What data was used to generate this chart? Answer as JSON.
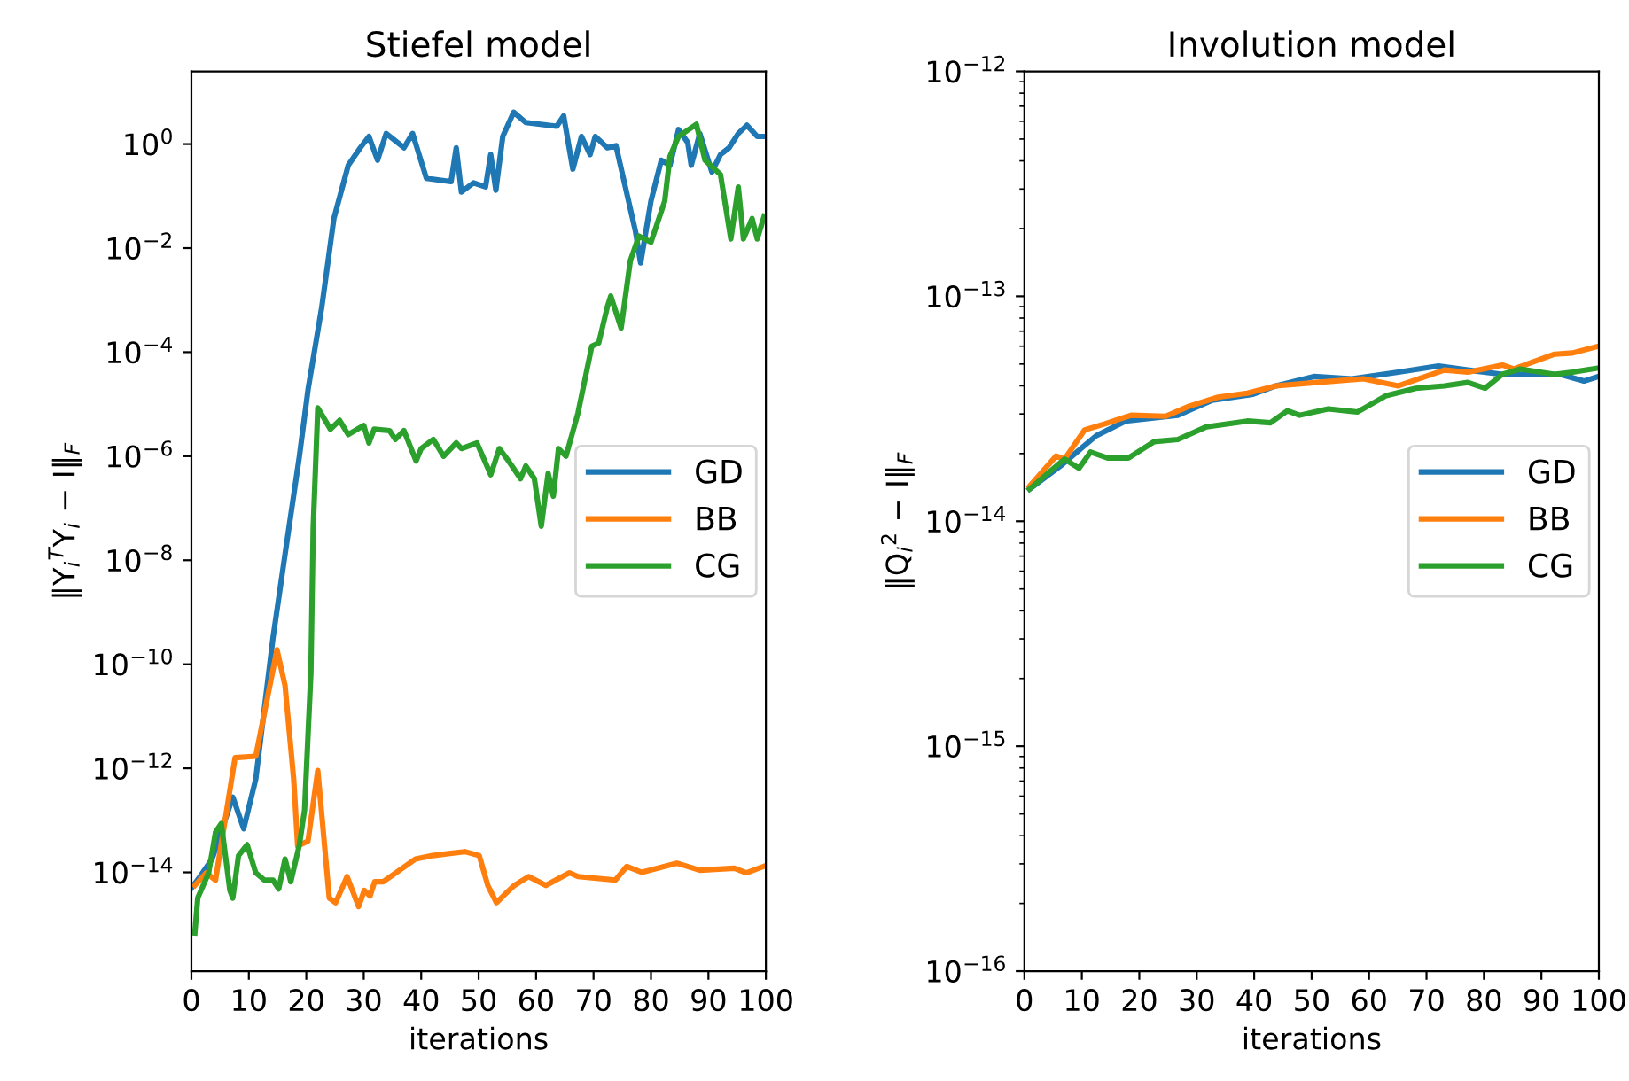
{
  "chart_data": [
    {
      "type": "line",
      "title": "Stiefel model",
      "xlabel": "iterations",
      "ylabel": "‖Y$_{i}$$^{T}$Y$_{i}$ − I‖$_{F}$",
      "log": "y",
      "grid": false,
      "legend": "right",
      "xlim": [
        0,
        100
      ],
      "xticks": [
        0,
        10,
        20,
        30,
        40,
        50,
        60,
        70,
        80,
        90,
        100
      ],
      "ylim": [
        1.26e-16,
        25
      ],
      "yticks": [
        {
          "value": 1e-14,
          "label": "10$^{−14}$"
        },
        {
          "value": 1e-12,
          "label": "10$^{−12}$"
        },
        {
          "value": 1e-10,
          "label": "10$^{−10}$"
        },
        {
          "value": 1e-08,
          "label": "10$^{−8}$"
        },
        {
          "value": 1e-06,
          "label": "10$^{−6}$"
        },
        {
          "value": 0.0001,
          "label": "10$^{−4}$"
        },
        {
          "value": 0.01,
          "label": "10$^{−2}$"
        },
        {
          "value": 1,
          "label": "10$^{0}$"
        }
      ],
      "series": [
        {
          "name": "GD",
          "color": "#1f77b4",
          "x": [
            0,
            1.5,
            3.6,
            7.2,
            9.1,
            11.2,
            14.2,
            16.3,
            18.8,
            20.3,
            22.7,
            24.8,
            27.3,
            29.4,
            30.9,
            32.4,
            33.9,
            37.0,
            38.5,
            40.9,
            45.2,
            46.1,
            47.0,
            49.1,
            51.2,
            52.1,
            53.0,
            54.2,
            56.1,
            58.2,
            63.6,
            64.8,
            66.4,
            67.9,
            69.4,
            70.3,
            72.4,
            73.9,
            77.3,
            78.2,
            80.0,
            81.8,
            83.3,
            84.8,
            86.4,
            87.0,
            88.5,
            90.6,
            92.1,
            93.6,
            95.2,
            96.7,
            98.5,
            100
          ],
          "values": [
            5e-15,
            8.3e-15,
            1.8e-14,
            2.8e-13,
            6.9e-14,
            6.2e-13,
            3.2e-10,
            1.3e-08,
            1e-06,
            1.9e-05,
            0.00074,
            0.037,
            0.39,
            0.85,
            1.4,
            0.49,
            1.6,
            0.85,
            1.6,
            0.22,
            0.19,
            0.85,
            0.12,
            0.18,
            0.15,
            0.63,
            0.13,
            1.4,
            4.1,
            2.6,
            2.2,
            3.5,
            0.33,
            1.4,
            0.63,
            1.4,
            0.85,
            0.93,
            0.021,
            0.0052,
            0.081,
            0.49,
            0.39,
            1.9,
            1.07,
            0.39,
            1.6,
            0.29,
            0.63,
            0.85,
            1.6,
            2.3,
            1.4,
            1.4
          ]
        },
        {
          "name": "BB",
          "color": "#ff7f0e",
          "x": [
            0.6,
            2.6,
            4.2,
            7.6,
            11.2,
            14.9,
            16.3,
            17.8,
            18.5,
            20.3,
            22.0,
            24.0,
            25.1,
            27.1,
            29.1,
            30.1,
            31.1,
            31.9,
            33.4,
            39.0,
            42.0,
            47.6,
            50.1,
            51.6,
            53.1,
            54.6,
            56.2,
            58.7,
            61.7,
            65.8,
            67.3,
            73.8,
            75.8,
            78.4,
            84.5,
            88.5,
            94.5,
            96.6,
            99.6
          ],
          "values": [
            5.6e-15,
            9.8e-15,
            7.1e-15,
            1.6e-12,
            1.7e-12,
            1.9e-10,
            3.9e-11,
            6.2e-13,
            3.2e-14,
            4e-14,
            9.1e-13,
            3.2e-15,
            2.6e-15,
            8.3e-15,
            2.2e-15,
            4.5e-15,
            3.5e-15,
            6.6e-15,
            6.6e-15,
            1.8e-14,
            2.1e-14,
            2.5e-14,
            2.1e-14,
            5.6e-15,
            2.6e-15,
            3.8e-15,
            5.6e-15,
            8.3e-15,
            5.6e-15,
            9.8e-15,
            8.3e-15,
            7.1e-15,
            1.3e-14,
            1e-14,
            1.5e-14,
            1.1e-14,
            1.2e-14,
            9.8e-15,
            1.3e-14
          ]
        },
        {
          "name": "CG",
          "color": "#2ca02c",
          "x": [
            0.6,
            1.1,
            3.0,
            4.2,
            5.2,
            6.7,
            7.2,
            8.2,
            9.7,
            11.2,
            12.7,
            14.2,
            15.2,
            16.3,
            17.3,
            18.8,
            19.7,
            20.8,
            21.2,
            22.0,
            24.2,
            25.8,
            27.3,
            30.0,
            30.9,
            31.8,
            34.5,
            35.5,
            37.0,
            39.1,
            40.0,
            42.1,
            43.9,
            46.1,
            47.0,
            49.7,
            52.1,
            53.6,
            55.2,
            57.3,
            58.2,
            59.7,
            60.9,
            62.1,
            63.0,
            63.9,
            65.2,
            67.3,
            69.7,
            70.9,
            72.4,
            73.0,
            74.8,
            76.4,
            77.9,
            80.0,
            82.4,
            83.3,
            84.8,
            87.9,
            89.4,
            92.1,
            93.9,
            95.2,
            96.1,
            97.6,
            98.5,
            99.7
          ],
          "values": [
            6.8e-16,
            3.2e-15,
            9.8e-15,
            5.9e-14,
            8.7e-14,
            4.5e-15,
            3.2e-15,
            2.1e-14,
            3.4e-14,
            9.8e-15,
            7.1e-15,
            7.1e-15,
            4.8e-15,
            1.8e-14,
            6.6e-15,
            3.4e-14,
            1.6e-13,
            6.8e-11,
            4.2e-08,
            8.5e-06,
            3.3e-06,
            4.9e-06,
            2.6e-06,
            3.9e-06,
            1.8e-06,
            3.3e-06,
            3.1e-06,
            2.1e-06,
            3.1e-06,
            8.1e-07,
            1.4e-06,
            2.1e-06,
            1e-06,
            1.8e-06,
            1.4e-06,
            1.8e-06,
            4.4e-07,
            1.4e-06,
            8.1e-07,
            3.7e-07,
            6.5e-07,
            3.7e-07,
            4.5e-08,
            4.7e-07,
            1.7e-07,
            1.4e-06,
            1e-06,
            6.8e-06,
            0.00013,
            0.00015,
            0.00074,
            0.0012,
            0.00029,
            0.0057,
            0.017,
            0.013,
            0.081,
            0.58,
            1.4,
            2.4,
            0.49,
            0.26,
            0.015,
            0.15,
            0.015,
            0.037,
            0.015,
            0.041
          ]
        }
      ]
    },
    {
      "type": "line",
      "title": "Involution model",
      "xlabel": "iterations",
      "ylabel": "‖Q$_{i}$$^{2}$ − I‖$_{F}$",
      "log": "y",
      "grid": false,
      "legend": "right",
      "xlim": [
        0,
        100
      ],
      "xticks": [
        0,
        10,
        20,
        30,
        40,
        50,
        60,
        70,
        80,
        90,
        100
      ],
      "ylim": [
        1e-16,
        1e-12
      ],
      "yticks": [
        {
          "value": 1e-16,
          "label": "10$^{−16}$"
        },
        {
          "value": 1e-15,
          "label": "10$^{−15}$"
        },
        {
          "value": 1e-14,
          "label": "10$^{−14}$"
        },
        {
          "value": 1e-13,
          "label": "10$^{−13}$"
        },
        {
          "value": 1e-12,
          "label": "10$^{−12}$"
        }
      ],
      "series": [
        {
          "name": "GD",
          "color": "#1f77b4",
          "x": [
            0.9,
            6.5,
            9.5,
            12.5,
            17.6,
            26.7,
            32.7,
            39.8,
            43.8,
            50.4,
            57.0,
            65.1,
            72.1,
            77.2,
            83.2,
            93.3,
            97.4,
            99.9
          ],
          "values": [
            1.39e-14,
            1.78e-14,
            2.07e-14,
            2.4e-14,
            2.79e-14,
            2.96e-14,
            3.45e-14,
            3.67e-14,
            4e-14,
            4.4e-14,
            4.3e-14,
            4.6e-14,
            4.9e-14,
            4.7e-14,
            4.5e-14,
            4.5e-14,
            4.2e-14,
            4.4e-14
          ]
        },
        {
          "name": "BB",
          "color": "#ff7f0e",
          "x": [
            0.9,
            5.5,
            7.0,
            10.5,
            14.0,
            18.6,
            24.6,
            28.7,
            33.7,
            38.8,
            43.8,
            50.9,
            59.0,
            65.1,
            73.1,
            77.2,
            83.2,
            85.2,
            92.3,
            95.4,
            99.9
          ],
          "values": [
            1.43e-14,
            1.95e-14,
            1.89e-14,
            2.55e-14,
            2.71e-14,
            2.96e-14,
            2.93e-14,
            3.25e-14,
            3.56e-14,
            3.71e-14,
            4e-14,
            4.14e-14,
            4.3e-14,
            4e-14,
            4.7e-14,
            4.6e-14,
            4.95e-14,
            4.75e-14,
            5.53e-14,
            5.6e-14,
            6e-14
          ]
        },
        {
          "name": "CG",
          "color": "#2ca02c",
          "x": [
            0.9,
            4.5,
            7.0,
            9.5,
            11.5,
            14.5,
            18.1,
            22.6,
            26.7,
            31.7,
            38.8,
            42.8,
            45.8,
            47.9,
            52.9,
            58.0,
            63.0,
            68.1,
            73.1,
            77.2,
            80.2,
            83.2,
            86.3,
            92.3,
            95.4,
            99.9
          ],
          "values": [
            1.39e-14,
            1.67e-14,
            1.89e-14,
            1.72e-14,
            2.03e-14,
            1.91e-14,
            1.91e-14,
            2.26e-14,
            2.31e-14,
            2.63e-14,
            2.79e-14,
            2.74e-14,
            3.1e-14,
            2.96e-14,
            3.16e-14,
            3.06e-14,
            3.62e-14,
            3.9e-14,
            4e-14,
            4.14e-14,
            3.9e-14,
            4.5e-14,
            4.75e-14,
            4.5e-14,
            4.6e-14,
            4.8e-14
          ]
        }
      ]
    }
  ]
}
